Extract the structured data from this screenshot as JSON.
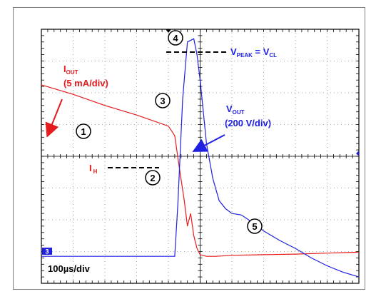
{
  "chart_data": {
    "type": "line",
    "timebase": "100µs/div",
    "horizontal_divisions": 10,
    "vertical_divisions": 8,
    "series": [
      {
        "name": "IOUT",
        "label_main": "I",
        "label_sub": "OUT",
        "scale": "(5 mA/div)",
        "color": "#e41a1c",
        "x_div": [
          0,
          1,
          2,
          3,
          4,
          4.2,
          4.35,
          4.5,
          4.6,
          4.7,
          4.8,
          4.9,
          5.0,
          5.2,
          5.5,
          6,
          7,
          8,
          9,
          10
        ],
        "y_div": [
          6.25,
          5.95,
          5.6,
          5.3,
          4.95,
          4.65,
          3.6,
          2.6,
          1.8,
          2.2,
          1.5,
          1.1,
          0.9,
          0.85,
          0.85,
          0.88,
          0.9,
          0.92,
          0.95,
          0.98
        ]
      },
      {
        "name": "VOUT",
        "label_main": "V",
        "label_sub": "OUT",
        "scale": "(200 V/div)",
        "color": "#2020e0",
        "x_div": [
          0,
          1,
          2,
          3,
          4,
          4.2,
          4.3,
          4.45,
          4.6,
          4.8,
          4.9,
          5.0,
          5.2,
          5.4,
          5.6,
          5.8,
          6.0,
          6.3,
          6.6,
          7,
          7.5,
          8,
          8.5,
          9,
          9.5,
          10
        ],
        "y_div": [
          0.85,
          0.85,
          0.85,
          0.85,
          0.85,
          0.85,
          2.5,
          5.8,
          7.6,
          7.7,
          7.2,
          6.4,
          4.4,
          3.3,
          2.6,
          2.35,
          2.2,
          2.15,
          1.95,
          1.65,
          1.35,
          1.1,
          0.8,
          0.55,
          0.35,
          0.2
        ]
      }
    ],
    "annotations": {
      "ih": {
        "main": "I",
        "sub": "H"
      },
      "vpeak": {
        "main1": "V",
        "sub1": "PEAK",
        "eq": " = V",
        "sub2": "CL"
      },
      "markers": [
        "1",
        "2",
        "3",
        "4",
        "5"
      ],
      "channel_marker": "3"
    }
  }
}
